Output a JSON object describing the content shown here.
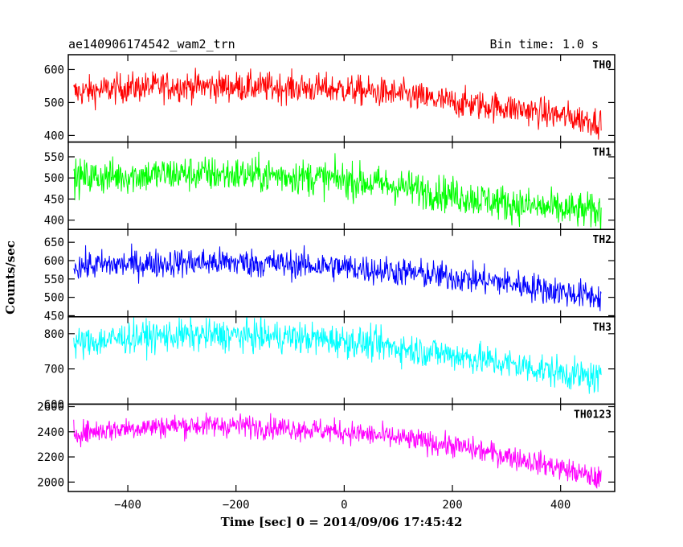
{
  "header": {
    "title": "ae140906174542_wam2_trn",
    "bin_time": "Bin time: 1.0 s"
  },
  "axes": {
    "xlabel": "Time [sec] 0 = 2014/09/06 17:45:42",
    "ylabel": "Counts/sec"
  },
  "chart_data": {
    "type": "line",
    "title": "ae140906174542_wam2_trn",
    "subtitle": "Bin time: 1.0 s",
    "xlabel": "Time [sec] 0 = 2014/09/06 17:45:42",
    "ylabel": "Counts/sec",
    "xlim": [
      -510,
      500
    ],
    "x_ticks": [
      -400,
      -200,
      0,
      200,
      400
    ],
    "x_range_data": [
      -500,
      475
    ],
    "grid": false,
    "legend": "none",
    "panels": [
      {
        "name": "TH0",
        "color": "#ff0000",
        "ylim": [
          380,
          645
        ],
        "y_ticks": [
          400,
          500,
          600
        ],
        "x": [
          -500,
          -400,
          -300,
          -200,
          -100,
          0,
          100,
          200,
          300,
          400,
          475
        ],
        "values": [
          530,
          545,
          550,
          548,
          545,
          540,
          525,
          500,
          485,
          460,
          440
        ],
        "noise": 32
      },
      {
        "name": "TH1",
        "color": "#00ff00",
        "ylim": [
          378,
          585
        ],
        "y_ticks": [
          400,
          450,
          500,
          550
        ],
        "x": [
          -500,
          -400,
          -300,
          -200,
          -100,
          0,
          100,
          200,
          300,
          400,
          475
        ],
        "values": [
          500,
          505,
          510,
          508,
          505,
          495,
          480,
          460,
          440,
          425,
          420
        ],
        "noise": 30
      },
      {
        "name": "TH2",
        "color": "#0000ff",
        "ylim": [
          447,
          685
        ],
        "y_ticks": [
          450,
          500,
          550,
          600,
          650
        ],
        "x": [
          -500,
          -400,
          -300,
          -200,
          -100,
          0,
          100,
          200,
          300,
          400,
          475
        ],
        "values": [
          585,
          590,
          595,
          595,
          590,
          582,
          570,
          555,
          540,
          515,
          500
        ],
        "noise": 28
      },
      {
        "name": "TH3",
        "color": "#00ffff",
        "ylim": [
          600,
          848
        ],
        "y_ticks": [
          600,
          700,
          800
        ],
        "x": [
          -500,
          -400,
          -300,
          -200,
          -100,
          0,
          100,
          200,
          300,
          400,
          475
        ],
        "values": [
          770,
          790,
          795,
          795,
          790,
          780,
          760,
          740,
          715,
          690,
          670
        ],
        "noise": 32
      },
      {
        "name": "TH0123",
        "color": "#ff00ff",
        "ylim": [
          1925,
          2620
        ],
        "y_ticks": [
          2000,
          2200,
          2400,
          2600
        ],
        "x": [
          -500,
          -400,
          -300,
          -200,
          -100,
          0,
          100,
          200,
          300,
          400,
          475
        ],
        "values": [
          2390,
          2430,
          2450,
          2450,
          2430,
          2400,
          2350,
          2290,
          2210,
          2110,
          2020
        ],
        "noise": 65
      }
    ]
  }
}
